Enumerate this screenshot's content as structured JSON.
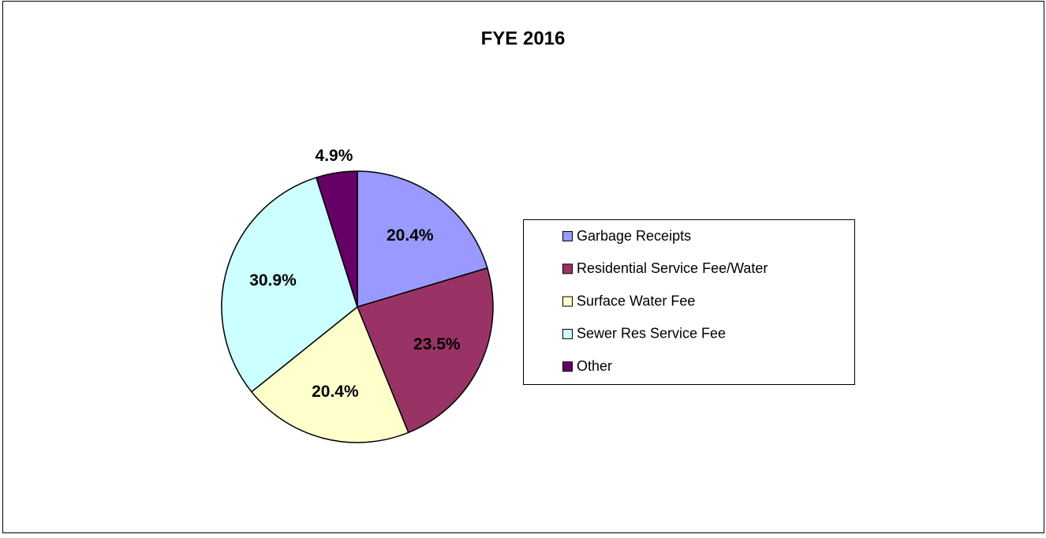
{
  "chart_data": {
    "type": "pie",
    "title": "FYE 2016",
    "categories": [
      "Garbage Receipts",
      "Residential Service Fee/Water",
      "Surface Water Fee",
      "Sewer Res Service Fee",
      "Other"
    ],
    "values": [
      20.4,
      23.5,
      20.4,
      30.9,
      4.9
    ],
    "value_labels": [
      "20.4%",
      "23.5%",
      "20.4%",
      "30.9%",
      "4.9%"
    ],
    "colors": [
      "#9999ff",
      "#993366",
      "#ffffcc",
      "#ccffff",
      "#660066"
    ],
    "legend": "right"
  }
}
